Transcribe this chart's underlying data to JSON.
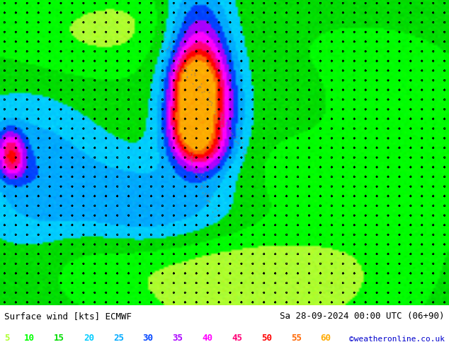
{
  "title_left": "Surface wind [kts] ECMWF",
  "title_right": "Sa 28-09-2024 00:00 UTC (06+90)",
  "credit": "©weatheronline.co.uk",
  "legend_values": [
    "5",
    "10",
    "15",
    "20",
    "25",
    "30",
    "35",
    "40",
    "45",
    "50",
    "55",
    "60"
  ],
  "legend_colors": [
    "#adff2f",
    "#00ff00",
    "#00dd00",
    "#00ccff",
    "#00aaff",
    "#0044ff",
    "#aa00ff",
    "#ff00ff",
    "#ff0077",
    "#ff0000",
    "#ff6600",
    "#ffaa00"
  ],
  "speed_levels": [
    5,
    10,
    15,
    20,
    25,
    30,
    35,
    40,
    45,
    50,
    55,
    60,
    70
  ],
  "speed_colors": [
    "#adff2f",
    "#00ff00",
    "#00dd00",
    "#00ccff",
    "#00aaff",
    "#0044ff",
    "#aa00ff",
    "#ff00ff",
    "#ff0077",
    "#ff0000",
    "#ff6600",
    "#ffaa00"
  ],
  "bg_color": "#ffffff",
  "figsize": [
    6.34,
    4.9
  ],
  "dpi": 100,
  "font_color_left": "#000000",
  "font_color_right": "#000000",
  "font_color_credit": "#0000cc",
  "text_font_size": 9,
  "legend_font_size": 9
}
